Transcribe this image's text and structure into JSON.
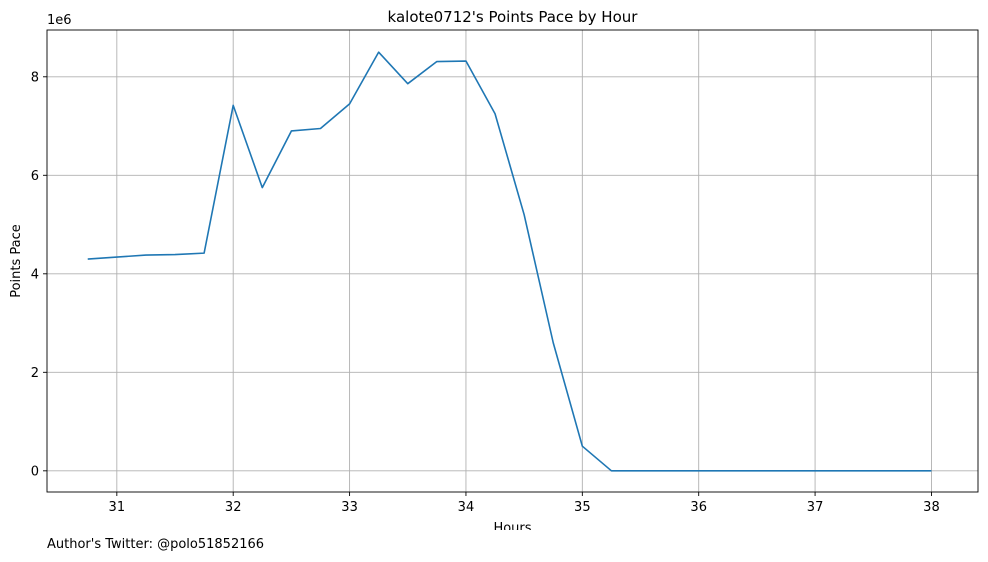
{
  "chart_data": {
    "type": "line",
    "title": "kalote0712's Points Pace by Hour",
    "xlabel": "Hours",
    "ylabel": "Points Pace",
    "y_offset_label": "1e6",
    "xlim": [
      30.4,
      38.4
    ],
    "ylim": [
      -430000,
      8950000
    ],
    "x_ticks": [
      31,
      32,
      33,
      34,
      35,
      36,
      37,
      38
    ],
    "y_ticks": [
      0,
      2000000,
      4000000,
      6000000,
      8000000
    ],
    "y_tick_labels": [
      "0",
      "2",
      "4",
      "6",
      "8"
    ],
    "grid": true,
    "line_color": "#1f77b4",
    "grid_color": "#b0b0b0",
    "x": [
      30.75,
      31.0,
      31.25,
      31.5,
      31.75,
      32.0,
      32.25,
      32.5,
      32.75,
      33.0,
      33.25,
      33.5,
      33.75,
      34.0,
      34.25,
      34.5,
      34.75,
      35.0,
      35.25,
      35.5,
      35.75,
      36.0,
      36.25,
      36.5,
      36.75,
      37.0,
      37.25,
      37.5,
      37.75,
      38.0
    ],
    "y": [
      4300000,
      4340000,
      4380000,
      4390000,
      4420000,
      7420000,
      5750000,
      6900000,
      6950000,
      7450000,
      8500000,
      7860000,
      8310000,
      8320000,
      7250000,
      5200000,
      2600000,
      500000,
      0,
      0,
      0,
      0,
      0,
      0,
      0,
      0,
      0,
      0,
      0,
      0
    ]
  },
  "footer": {
    "author_note": "Author's Twitter: @polo51852166"
  }
}
